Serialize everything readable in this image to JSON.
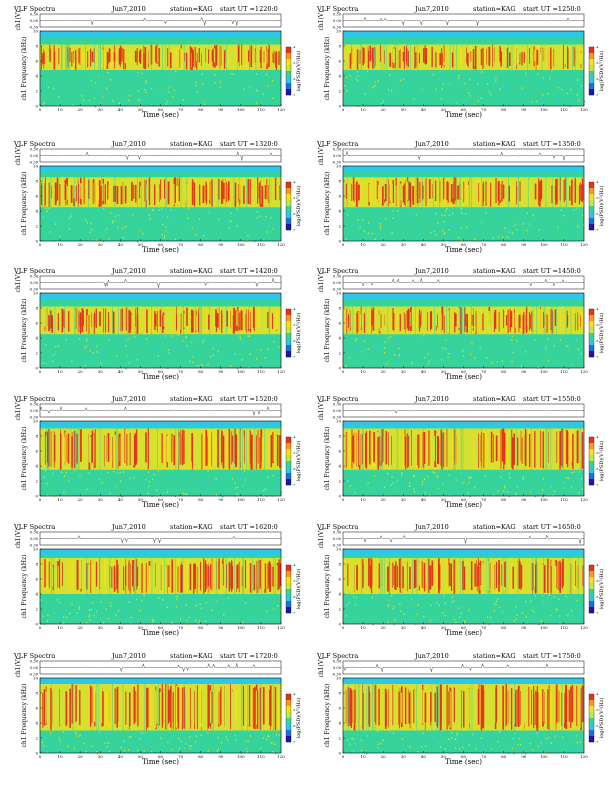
{
  "colors": {
    "background": "#ffffff",
    "saturated_band": "#2ec8e6",
    "base": "#36d49a",
    "mid": "#c8e63a",
    "high": "#f5e11a",
    "peak": "#e8331c",
    "colorbar": [
      "#1a1aa6",
      "#1f6fe0",
      "#2ec8e6",
      "#36d49a",
      "#c8e63a",
      "#f5e11a",
      "#f59a1a",
      "#e8331c"
    ]
  },
  "chart_data": [
    {
      "type": "heatmap",
      "title": "VLF Spectra",
      "date": "Jun7,2010",
      "station": "station=KAG",
      "start_ut": "start UT =1220:0",
      "xlabel": "Time (sec)",
      "ylabel_top": "ch1(V)",
      "ylabel": "ch1 Frequency (kHz)",
      "colorbar_label": "log(PSD)(V²/Hz)",
      "xlim": [
        0,
        120
      ],
      "ylim": [
        0,
        10
      ],
      "waveform_ylim": [
        -0.3,
        0.3
      ],
      "x_ticks": [
        "0",
        "10",
        "20",
        "30",
        "40",
        "50",
        "60",
        "70",
        "80",
        "90",
        "100",
        "110",
        "120"
      ],
      "y_ticks": [
        "0",
        "2",
        "4",
        "6",
        "8",
        "10"
      ],
      "waveform_ticks": [
        "0.30",
        "0.00",
        "-0.30"
      ],
      "colorbar_ticks": [
        "-7",
        "-6",
        "-5",
        "-4"
      ],
      "band_khz": [
        9.2,
        10
      ],
      "emission_band_khz": [
        4.8,
        8.2
      ]
    },
    {
      "type": "heatmap",
      "title": "VLF Spectra",
      "date": "Jun7,2010",
      "station": "station=KAG",
      "start_ut": "start UT =1250:0",
      "xlabel": "Time (sec)",
      "ylabel_top": "ch1(V)",
      "ylabel": "ch1 Frequency (kHz)",
      "colorbar_label": "log(PSD)(V²/Hz)",
      "xlim": [
        0,
        120
      ],
      "ylim": [
        0,
        10
      ],
      "waveform_ylim": [
        -0.3,
        0.3
      ],
      "x_ticks": [
        "0",
        "10",
        "20",
        "30",
        "40",
        "50",
        "60",
        "70",
        "80",
        "90",
        "100",
        "110",
        "120"
      ],
      "y_ticks": [
        "0",
        "2",
        "4",
        "6",
        "8",
        "10"
      ],
      "waveform_ticks": [
        "0.30",
        "0.00",
        "-0.30"
      ],
      "colorbar_ticks": [
        "-7",
        "-6",
        "-5",
        "-4"
      ],
      "band_khz": [
        9.2,
        10
      ],
      "emission_band_khz": [
        4.8,
        8.2
      ]
    },
    {
      "type": "heatmap",
      "title": "VLF Spectra",
      "date": "Jun7,2010",
      "station": "station=KAG",
      "start_ut": "start UT =1320:0",
      "xlabel": "Time (sec)",
      "ylabel_top": "ch1(V)",
      "ylabel": "ch1 Frequency (kHz)",
      "colorbar_label": "log(PSD)(V²/Hz)",
      "xlim": [
        0,
        120
      ],
      "ylim": [
        0,
        10
      ],
      "waveform_ylim": [
        -0.3,
        0.3
      ],
      "x_ticks": [
        "0",
        "10",
        "20",
        "30",
        "40",
        "50",
        "60",
        "70",
        "80",
        "90",
        "100",
        "110",
        "120"
      ],
      "y_ticks": [
        "0",
        "2",
        "4",
        "6",
        "8",
        "10"
      ],
      "waveform_ticks": [
        "0.30",
        "0.00",
        "-0.30"
      ],
      "colorbar_ticks": [
        "-7",
        "-6",
        "-5",
        "-4"
      ],
      "band_khz": [
        9.2,
        10
      ],
      "emission_band_khz": [
        4.5,
        8.5
      ]
    },
    {
      "type": "heatmap",
      "title": "VLF Spectra",
      "date": "Jun7,2010",
      "station": "station=KAG",
      "start_ut": "start UT =1350:0",
      "xlabel": "Time (sec)",
      "ylabel_top": "ch1(V)",
      "ylabel": "ch1 Frequency (kHz)",
      "colorbar_label": "log(PSD)(V²/Hz)",
      "xlim": [
        0,
        120
      ],
      "ylim": [
        0,
        10
      ],
      "waveform_ylim": [
        -0.3,
        0.3
      ],
      "x_ticks": [
        "0",
        "10",
        "20",
        "30",
        "40",
        "50",
        "60",
        "70",
        "80",
        "90",
        "100",
        "110",
        "120"
      ],
      "y_ticks": [
        "0",
        "2",
        "4",
        "6",
        "8",
        "10"
      ],
      "waveform_ticks": [
        "0.30",
        "0.00",
        "-0.30"
      ],
      "colorbar_ticks": [
        "-7",
        "-6",
        "-5",
        "-4"
      ],
      "band_khz": [
        9.2,
        10
      ],
      "emission_band_khz": [
        4.5,
        8.5
      ]
    },
    {
      "type": "heatmap",
      "title": "VLF Spectra",
      "date": "Jun7,2010",
      "station": "station=KAG",
      "start_ut": "start UT =1420:0",
      "xlabel": "Time (sec)",
      "ylabel_top": "ch1(V)",
      "ylabel": "ch1 Frequency (kHz)",
      "colorbar_label": "log(PSD)(V²/Hz)",
      "xlim": [
        0,
        120
      ],
      "ylim": [
        0,
        10
      ],
      "waveform_ylim": [
        -0.3,
        0.3
      ],
      "x_ticks": [
        "0",
        "10",
        "20",
        "30",
        "40",
        "50",
        "60",
        "70",
        "80",
        "90",
        "100",
        "110",
        "120"
      ],
      "y_ticks": [
        "0",
        "2",
        "4",
        "6",
        "8",
        "10"
      ],
      "waveform_ticks": [
        "0.30",
        "0.00",
        "-0.30"
      ],
      "colorbar_ticks": [
        "-7",
        "-6",
        "-5",
        "-4"
      ],
      "band_khz": [
        9.2,
        10
      ],
      "emission_band_khz": [
        4.5,
        8.2
      ]
    },
    {
      "type": "heatmap",
      "title": "VLF Spectra",
      "date": "Jun7,2010",
      "station": "station=KAG",
      "start_ut": "start UT =1450:0",
      "xlabel": "Time (sec)",
      "ylabel_top": "ch1(V)",
      "ylabel": "ch1 Frequency (kHz)",
      "colorbar_label": "log(PSD)(V²/Hz)",
      "xlim": [
        0,
        120
      ],
      "ylim": [
        0,
        10
      ],
      "waveform_ylim": [
        -0.3,
        0.3
      ],
      "x_ticks": [
        "0",
        "10",
        "20",
        "30",
        "40",
        "50",
        "60",
        "70",
        "80",
        "90",
        "100",
        "110",
        "120"
      ],
      "y_ticks": [
        "0",
        "2",
        "4",
        "6",
        "8",
        "10"
      ],
      "waveform_ticks": [
        "0.30",
        "0.00",
        "-0.30"
      ],
      "colorbar_ticks": [
        "-7",
        "-6",
        "-5",
        "-4"
      ],
      "band_khz": [
        9.2,
        10
      ],
      "emission_band_khz": [
        4.5,
        8.2
      ]
    },
    {
      "type": "heatmap",
      "title": "VLF Spectra",
      "date": "Jun7,2010",
      "station": "station=KAG",
      "start_ut": "start UT =1520:0",
      "xlabel": "Time (sec)",
      "ylabel_top": "ch1(V)",
      "ylabel": "ch1 Frequency (kHz)",
      "colorbar_label": "log(PSD)(V²/Hz)",
      "xlim": [
        0,
        120
      ],
      "ylim": [
        0,
        10
      ],
      "waveform_ylim": [
        -0.3,
        0.3
      ],
      "x_ticks": [
        "0",
        "10",
        "20",
        "30",
        "40",
        "50",
        "60",
        "70",
        "80",
        "90",
        "100",
        "110",
        "120"
      ],
      "y_ticks": [
        "0",
        "2",
        "4",
        "6",
        "8",
        "10"
      ],
      "waveform_ticks": [
        "0.30",
        "0.00",
        "-0.30"
      ],
      "colorbar_ticks": [
        "-7",
        "-6",
        "-5",
        "-4"
      ],
      "band_khz": [
        9.2,
        10
      ],
      "emission_band_khz": [
        3.5,
        9.0
      ]
    },
    {
      "type": "heatmap",
      "title": "VLF Spectra",
      "date": "Jun7,2010",
      "station": "station=KAG",
      "start_ut": "start UT =1550:0",
      "xlabel": "Time (sec)",
      "ylabel_top": "ch1(V)",
      "ylabel": "ch1 Frequency (kHz)",
      "colorbar_label": "log(PSD)(V²/Hz)",
      "xlim": [
        0,
        120
      ],
      "ylim": [
        0,
        10
      ],
      "waveform_ylim": [
        -0.3,
        0.3
      ],
      "x_ticks": [
        "0",
        "10",
        "20",
        "30",
        "40",
        "50",
        "60",
        "70",
        "80",
        "90",
        "100",
        "110",
        "120"
      ],
      "y_ticks": [
        "0",
        "2",
        "4",
        "6",
        "8",
        "10"
      ],
      "waveform_ticks": [
        "0.30",
        "0.00",
        "-0.30"
      ],
      "colorbar_ticks": [
        "-7",
        "-6",
        "-5",
        "-4"
      ],
      "band_khz": [
        9.2,
        10
      ],
      "emission_band_khz": [
        3.5,
        9.0
      ]
    },
    {
      "type": "heatmap",
      "title": "VLF Spectra",
      "date": "Jun7,2010",
      "station": "station=KAG",
      "start_ut": "start UT =1620:0",
      "xlabel": "Time (sec)",
      "ylabel_top": "ch1(V)",
      "ylabel": "ch1 Frequency (kHz)",
      "colorbar_label": "log(PSD)(V²/Hz)",
      "xlim": [
        0,
        120
      ],
      "ylim": [
        0,
        10
      ],
      "waveform_ylim": [
        -0.3,
        0.3
      ],
      "x_ticks": [
        "0",
        "10",
        "20",
        "30",
        "40",
        "50",
        "60",
        "70",
        "80",
        "90",
        "100",
        "110",
        "120"
      ],
      "y_ticks": [
        "0",
        "2",
        "4",
        "6",
        "8",
        "10"
      ],
      "waveform_ticks": [
        "0.30",
        "0.00",
        "-0.30"
      ],
      "colorbar_ticks": [
        "-7",
        "-6",
        "-5",
        "-4"
      ],
      "band_khz": [
        9.2,
        10
      ],
      "emission_band_khz": [
        4.0,
        8.8
      ]
    },
    {
      "type": "heatmap",
      "title": "VLF Spectra",
      "date": "Jun7,2010",
      "station": "station=KAG",
      "start_ut": "start UT =1650:0",
      "xlabel": "Time (sec)",
      "ylabel_top": "ch1(V)",
      "ylabel": "ch1 Frequency (kHz)",
      "colorbar_label": "log(PSD)(V²/Hz)",
      "xlim": [
        0,
        120
      ],
      "ylim": [
        0,
        10
      ],
      "waveform_ylim": [
        -0.3,
        0.3
      ],
      "x_ticks": [
        "0",
        "10",
        "20",
        "30",
        "40",
        "50",
        "60",
        "70",
        "80",
        "90",
        "100",
        "110",
        "120"
      ],
      "y_ticks": [
        "0",
        "2",
        "4",
        "6",
        "8",
        "10"
      ],
      "waveform_ticks": [
        "0.30",
        "0.00",
        "-0.30"
      ],
      "colorbar_ticks": [
        "-7",
        "-6",
        "-5",
        "-4"
      ],
      "band_khz": [
        9.2,
        10
      ],
      "emission_band_khz": [
        4.0,
        8.8
      ]
    },
    {
      "type": "heatmap",
      "title": "VLF Spectra",
      "date": "Jun7,2010",
      "station": "station=KAG",
      "start_ut": "start UT =1720:0",
      "xlabel": "Time (sec)",
      "ylabel_top": "ch1(V)",
      "ylabel": "ch1 Frequency (kHz)",
      "colorbar_label": "log(PSD)(V²/Hz)",
      "xlim": [
        0,
        120
      ],
      "ylim": [
        0,
        10
      ],
      "waveform_ylim": [
        -0.3,
        0.3
      ],
      "x_ticks": [
        "0",
        "10",
        "20",
        "30",
        "40",
        "50",
        "60",
        "70",
        "80",
        "90",
        "100",
        "110",
        "120"
      ],
      "y_ticks": [
        "0",
        "2",
        "4",
        "6",
        "8",
        "10"
      ],
      "waveform_ticks": [
        "0.30",
        "0.00",
        "-0.30"
      ],
      "colorbar_ticks": [
        "-7",
        "-6",
        "-5",
        "-4"
      ],
      "band_khz": [
        9.0,
        10
      ],
      "emission_band_khz": [
        3.0,
        9.2
      ]
    },
    {
      "type": "heatmap",
      "title": "VLF Spectra",
      "date": "Jun7,2010",
      "station": "station=KAG",
      "start_ut": "start UT =1750:0",
      "xlabel": "Time (sec)",
      "ylabel_top": "ch1(V)",
      "ylabel": "ch1 Frequency (kHz)",
      "colorbar_label": "log(PSD)(V²/Hz)",
      "xlim": [
        0,
        120
      ],
      "ylim": [
        0,
        10
      ],
      "waveform_ylim": [
        -0.3,
        0.3
      ],
      "x_ticks": [
        "0",
        "10",
        "20",
        "30",
        "40",
        "50",
        "60",
        "70",
        "80",
        "90",
        "100",
        "110",
        "120"
      ],
      "y_ticks": [
        "0",
        "2",
        "4",
        "6",
        "8",
        "10"
      ],
      "waveform_ticks": [
        "0.30",
        "0.00",
        "-0.30"
      ],
      "colorbar_ticks": [
        "-7",
        "-6",
        "-5",
        "-4"
      ],
      "band_khz": [
        9.0,
        10
      ],
      "emission_band_khz": [
        3.0,
        9.2
      ]
    }
  ]
}
